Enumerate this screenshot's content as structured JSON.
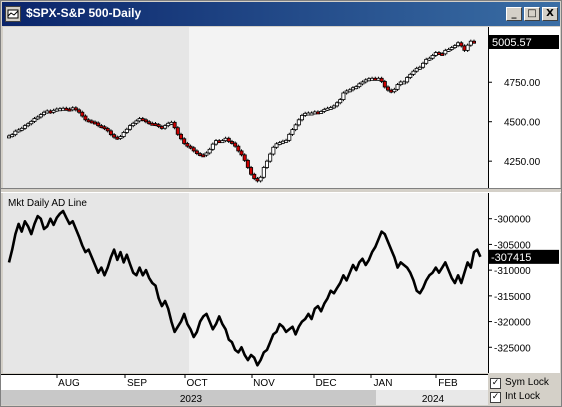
{
  "window": {
    "title": "$SPX-S&P 500-Daily",
    "buttons": [
      "_",
      "□",
      "X"
    ]
  },
  "chart_data": [
    {
      "type": "candlestick",
      "title": "$SPX-S&P 500-Daily",
      "last_value_label": "5005.57",
      "ylim": [
        4080,
        5100
      ],
      "y_ticks": [
        "5000.00",
        "4750.00",
        "4500.00",
        "4250.00"
      ],
      "y_tick_values": [
        5000,
        4750,
        4500,
        4250
      ],
      "up_color": "#ffffff",
      "down_color": "#cc0000",
      "values": [
        4410,
        4418,
        4440,
        4448,
        4458,
        4475,
        4487,
        4502,
        4520,
        4530,
        4545,
        4560,
        4568,
        4560,
        4572,
        4580,
        4582,
        4585,
        4580,
        4576,
        4588,
        4575,
        4560,
        4536,
        4512,
        4505,
        4498,
        4492,
        4475,
        4468,
        4457,
        4442,
        4418,
        4402,
        4395,
        4406,
        4432,
        4452,
        4475,
        4490,
        4505,
        4520,
        4512,
        4500,
        4490,
        4488,
        4482,
        4470,
        4459,
        4475,
        4490,
        4496,
        4462,
        4420,
        4392,
        4362,
        4345,
        4335,
        4315,
        4298,
        4290,
        4288,
        4302,
        4325,
        4358,
        4380,
        4375,
        4380,
        4395,
        4375,
        4365,
        4345,
        4315,
        4290,
        4255,
        4210,
        4167,
        4140,
        4125,
        4148,
        4210,
        4250,
        4295,
        4338,
        4360,
        4368,
        4376,
        4382,
        4420,
        4450,
        4480,
        4512,
        4540,
        4553,
        4555,
        4555,
        4562,
        4560,
        4565,
        4578,
        4585,
        4590,
        4600,
        4620,
        4640,
        4682,
        4695,
        4702,
        4715,
        4722,
        4740,
        4752,
        4765,
        4772,
        4775,
        4770,
        4775,
        4755,
        4720,
        4700,
        4690,
        4705,
        4735,
        4752,
        4752,
        4780,
        4800,
        4820,
        4838,
        4845,
        4870,
        4895,
        4902,
        4920,
        4938,
        4932,
        4930,
        4952,
        4958,
        4970,
        4982,
        5000,
        4980,
        4952,
        4985,
        5010,
        5005
      ]
    },
    {
      "type": "line",
      "title": "Mkt Daily AD Line",
      "last_value_label": "-307415",
      "ylim": [
        -330000,
        -295000
      ],
      "y_ticks": [
        "-300000",
        "-305000",
        "-310000",
        "-315000",
        "-320000",
        "-325000"
      ],
      "y_tick_values": [
        -300000,
        -305000,
        -310000,
        -315000,
        -320000,
        -325000
      ],
      "values": [
        -308500,
        -306000,
        -303000,
        -301000,
        -302500,
        -300500,
        -301500,
        -303000,
        -301000,
        -299500,
        -300000,
        -302000,
        -301500,
        -300000,
        -301200,
        -299800,
        -299000,
        -298500,
        -299800,
        -301000,
        -300500,
        -302000,
        -303500,
        -305200,
        -306500,
        -306000,
        -307500,
        -309000,
        -310500,
        -309500,
        -311000,
        -309500,
        -307500,
        -306000,
        -308000,
        -306500,
        -308500,
        -307000,
        -308800,
        -310500,
        -311000,
        -309500,
        -311000,
        -310000,
        -311500,
        -312500,
        -313000,
        -315500,
        -317000,
        -316000,
        -317500,
        -320000,
        -322000,
        -321000,
        -320000,
        -318500,
        -320500,
        -321500,
        -323000,
        -322000,
        -320000,
        -319000,
        -318500,
        -320000,
        -321500,
        -320500,
        -319000,
        -320500,
        -321500,
        -323500,
        -324000,
        -325500,
        -326000,
        -325000,
        -326500,
        -327500,
        -326500,
        -327000,
        -328500,
        -327500,
        -326000,
        -325500,
        -324000,
        -322500,
        -322000,
        -320500,
        -321000,
        -322000,
        -321500,
        -321000,
        -322500,
        -321000,
        -320000,
        -319500,
        -318500,
        -319500,
        -317500,
        -317000,
        -318000,
        -316500,
        -315500,
        -314000,
        -314500,
        -313500,
        -312500,
        -311000,
        -312000,
        -310500,
        -309000,
        -310000,
        -308500,
        -307800,
        -309000,
        -308000,
        -306500,
        -305500,
        -304000,
        -302500,
        -303000,
        -304500,
        -306000,
        -307500,
        -309500,
        -308500,
        -309000,
        -309500,
        -310500,
        -312000,
        -314000,
        -314500,
        -313500,
        -312000,
        -311000,
        -310500,
        -309500,
        -310500,
        -309500,
        -308500,
        -310000,
        -311500,
        -312500,
        -311000,
        -312500,
        -310500,
        -308500,
        -309500,
        -306500,
        -306000,
        -307415
      ]
    }
  ],
  "x_axis": {
    "months": [
      "AUG",
      "SEP",
      "OCT",
      "NOV",
      "DEC",
      "JAN",
      "FEB"
    ],
    "years": [
      "2023",
      "2024"
    ]
  },
  "locks": [
    {
      "label": "Sym Lock",
      "checked": "✓"
    },
    {
      "label": "Int Lock",
      "checked": "✓"
    }
  ],
  "colors": {
    "shaded_region": "#e6e6e6",
    "plot_bg": "#f3f3f3",
    "label_box": "#000000",
    "label_text": "#ffffff"
  }
}
